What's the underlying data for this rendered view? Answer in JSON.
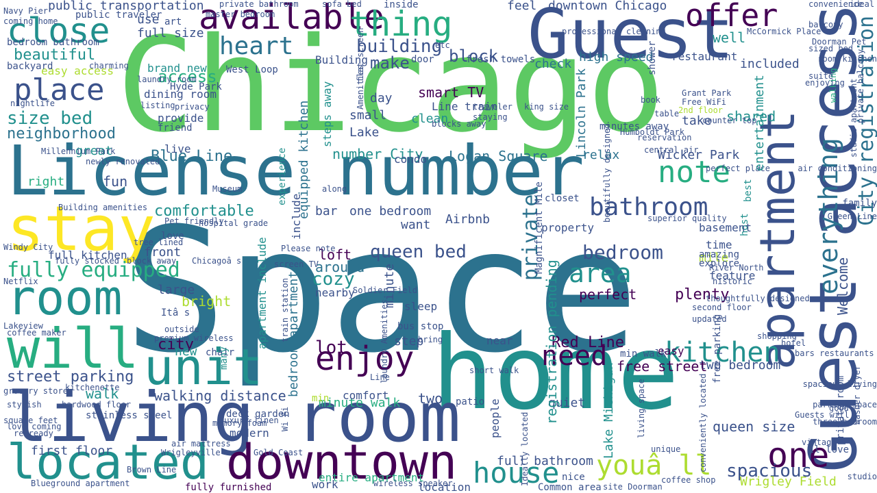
{
  "palette": {
    "dark_purple": "#440154",
    "indigo": "#3b528b",
    "teal": "#2c728e",
    "sea": "#21908d",
    "green": "#27ad81",
    "lime": "#5dc963",
    "light_lime": "#addc30",
    "yellow": "#fde725"
  },
  "words": [
    {
      "text": "Space"
    },
    {
      "text": "Chicago"
    },
    {
      "text": "home"
    },
    {
      "text": "Guest access"
    },
    {
      "text": "License number"
    },
    {
      "text": "Guest"
    },
    {
      "text": "living room"
    },
    {
      "text": "stay"
    },
    {
      "text": "room"
    },
    {
      "text": "will"
    },
    {
      "text": "unit"
    },
    {
      "text": "located"
    },
    {
      "text": "downtown"
    },
    {
      "text": "apartment"
    },
    {
      "text": "close"
    },
    {
      "text": "available"
    },
    {
      "text": "thing"
    },
    {
      "text": "offer"
    },
    {
      "text": "enjoy"
    },
    {
      "text": "house"
    },
    {
      "text": "youâ ll"
    },
    {
      "text": "one"
    },
    {
      "text": "kitchen"
    },
    {
      "text": "need"
    },
    {
      "text": "area"
    },
    {
      "text": "bathroom"
    },
    {
      "text": "note"
    },
    {
      "text": "place"
    },
    {
      "text": "heart"
    },
    {
      "text": "everything"
    },
    {
      "text": "City registration"
    },
    {
      "text": "fully equipped"
    },
    {
      "text": "queen bed"
    },
    {
      "text": "walking distance"
    },
    {
      "text": "street parking"
    },
    {
      "text": "bedroom"
    },
    {
      "text": "private"
    },
    {
      "text": "spacious"
    },
    {
      "text": "size bed"
    },
    {
      "text": "neighborhood"
    },
    {
      "text": "building"
    },
    {
      "text": "beautiful"
    },
    {
      "text": "block"
    },
    {
      "text": "make"
    },
    {
      "text": "access"
    },
    {
      "text": "Blue Line"
    },
    {
      "text": "Wicker Park"
    },
    {
      "text": "Logan Square"
    },
    {
      "text": "smart TV"
    },
    {
      "text": "comfortable"
    },
    {
      "text": "fully furnished"
    },
    {
      "text": "Wrigley Field"
    },
    {
      "text": "full bathroom"
    },
    {
      "text": "first floor"
    },
    {
      "text": "Red Line"
    },
    {
      "text": "minute walk"
    },
    {
      "text": "entire apartment"
    },
    {
      "text": "two bedroom"
    },
    {
      "text": "free street"
    },
    {
      "text": "perfect"
    },
    {
      "text": "plenty"
    },
    {
      "text": "Welcome"
    },
    {
      "text": "public transportation"
    },
    {
      "text": "Lincoln Park"
    },
    {
      "text": "Lake Michigan"
    },
    {
      "text": "full kitchen"
    },
    {
      "text": "one bedroom"
    },
    {
      "text": "Airbnb"
    },
    {
      "text": "downtown Chicago"
    },
    {
      "text": "brand new"
    },
    {
      "text": "dining room"
    },
    {
      "text": "easy access"
    },
    {
      "text": "high speed"
    },
    {
      "text": "restaurant"
    },
    {
      "text": "check"
    },
    {
      "text": "included"
    },
    {
      "text": "Line train"
    },
    {
      "text": "relax"
    },
    {
      "text": "number City"
    },
    {
      "text": "fun"
    },
    {
      "text": "great"
    },
    {
      "text": "right"
    },
    {
      "text": "provide"
    },
    {
      "text": "loft"
    },
    {
      "text": "around"
    },
    {
      "text": "cozy"
    },
    {
      "text": "nearby"
    },
    {
      "text": "condo"
    },
    {
      "text": "quiet"
    },
    {
      "text": "queen size"
    },
    {
      "text": "modern"
    },
    {
      "text": "lot"
    },
    {
      "text": "step"
    },
    {
      "text": "city"
    },
    {
      "text": "bright"
    },
    {
      "text": "large"
    },
    {
      "text": "front"
    },
    {
      "text": "walk"
    },
    {
      "text": "two"
    },
    {
      "text": "comfort"
    },
    {
      "text": "work"
    },
    {
      "text": "Wrigleyville"
    },
    {
      "text": "Hyde Park"
    },
    {
      "text": "Brown Line"
    },
    {
      "text": "Navy Pier"
    },
    {
      "text": "Millennium Park"
    },
    {
      "text": "Gold Coast"
    },
    {
      "text": "West Loop"
    },
    {
      "text": "Building amenities"
    },
    {
      "text": "minutes away"
    },
    {
      "text": "registration pending"
    },
    {
      "text": "Blueground apartment"
    },
    {
      "text": "hardwood floor"
    },
    {
      "text": "coffee maker"
    },
    {
      "text": "master bedroom"
    },
    {
      "text": "private bathroom"
    },
    {
      "text": "walking"
    },
    {
      "text": "McCormick Place"
    },
    {
      "text": "Grant Park"
    },
    {
      "text": "Free WiFi"
    },
    {
      "text": "2nd floor"
    },
    {
      "text": "take"
    },
    {
      "text": "mile"
    },
    {
      "text": "time"
    },
    {
      "text": "feature"
    },
    {
      "text": "amazing"
    },
    {
      "text": "explore"
    },
    {
      "text": "River North"
    },
    {
      "text": "Soldier Field"
    },
    {
      "text": "premium wireless"
    },
    {
      "text": "stainless steel"
    },
    {
      "text": "luxury linen"
    },
    {
      "text": "deck garden"
    },
    {
      "text": "Line"
    },
    {
      "text": "easy"
    },
    {
      "text": "min walk"
    },
    {
      "text": "coffee shop"
    },
    {
      "text": "spacious living"
    },
    {
      "text": "shopping"
    },
    {
      "text": "Museum"
    },
    {
      "text": "bar"
    },
    {
      "text": "want"
    },
    {
      "text": "minute"
    },
    {
      "text": "day"
    },
    {
      "text": "small"
    },
    {
      "text": "clean"
    },
    {
      "text": "Lake"
    },
    {
      "text": "sleep"
    },
    {
      "text": "bus stop"
    },
    {
      "text": "near"
    },
    {
      "text": "new"
    },
    {
      "text": "chair"
    },
    {
      "text": "love"
    },
    {
      "text": "use"
    },
    {
      "text": "art"
    },
    {
      "text": "full size"
    },
    {
      "text": "live"
    },
    {
      "text": "charming"
    },
    {
      "text": "backyard"
    },
    {
      "text": "bedroom bathroom"
    },
    {
      "text": "coming home"
    },
    {
      "text": "public traveler"
    },
    {
      "text": "sofa bed"
    },
    {
      "text": "feel"
    },
    {
      "text": "inside"
    },
    {
      "text": "door"
    },
    {
      "text": "fresh towels"
    },
    {
      "text": "Building"
    },
    {
      "text": "laundry room"
    },
    {
      "text": "privacy"
    },
    {
      "text": "friend"
    },
    {
      "text": "listing"
    },
    {
      "text": "nightlife"
    },
    {
      "text": "Windy City"
    },
    {
      "text": "Netflix"
    },
    {
      "text": "grocery store"
    },
    {
      "text": "kitchenette"
    },
    {
      "text": "air mattress"
    },
    {
      "text": "memory foam"
    },
    {
      "text": "stylish"
    },
    {
      "text": "square feet"
    },
    {
      "text": "love coming"
    },
    {
      "text": "re ready"
    },
    {
      "text": "block away"
    },
    {
      "text": "tree lined"
    },
    {
      "text": "fully stocked"
    },
    {
      "text": "Chicagoâ s"
    },
    {
      "text": "Please note"
    },
    {
      "text": "screen TV"
    },
    {
      "text": "shower"
    },
    {
      "text": "central air"
    },
    {
      "text": "perfect place"
    },
    {
      "text": "family"
    },
    {
      "text": "Green Line"
    },
    {
      "text": "shared"
    },
    {
      "text": "well"
    },
    {
      "text": "entertainment"
    },
    {
      "text": "best"
    },
    {
      "text": "closet"
    },
    {
      "text": "host"
    },
    {
      "text": "basement"
    },
    {
      "text": "superior quality"
    },
    {
      "text": "property"
    },
    {
      "text": "Magnificent Mile"
    },
    {
      "text": "experience"
    },
    {
      "text": "include"
    },
    {
      "text": "apartment include"
    },
    {
      "text": "bedroom apartment"
    },
    {
      "text": "equipped kitchen"
    },
    {
      "text": "steps away"
    },
    {
      "text": "many"
    },
    {
      "text": "outside"
    },
    {
      "text": "Itâ s"
    },
    {
      "text": "min"
    },
    {
      "text": "bring"
    },
    {
      "text": "short walk"
    },
    {
      "text": "patio"
    },
    {
      "text": "people"
    },
    {
      "text": "nice"
    },
    {
      "text": "location"
    },
    {
      "text": "Common area"
    },
    {
      "text": "site Doorman"
    },
    {
      "text": "ll love"
    },
    {
      "text": "studio"
    },
    {
      "text": "vintage"
    },
    {
      "text": "washer dryer"
    },
    {
      "text": "Ideally located"
    },
    {
      "text": "living space"
    },
    {
      "text": "conveniently located"
    },
    {
      "text": "unique"
    },
    {
      "text": "updated"
    },
    {
      "text": "second floor"
    },
    {
      "text": "historic"
    },
    {
      "text": "thoughtfully designed"
    },
    {
      "text": "Lakeview"
    },
    {
      "text": "flat screen"
    },
    {
      "text": "wireless speaker"
    },
    {
      "text": "Wi Fi"
    },
    {
      "text": "train station"
    },
    {
      "text": "newly renovated"
    },
    {
      "text": "hotel"
    },
    {
      "text": "ideal"
    },
    {
      "text": "convenience"
    },
    {
      "text": "etc"
    },
    {
      "text": "professional cleaning"
    },
    {
      "text": "balcony"
    },
    {
      "text": "Doorman Pet"
    },
    {
      "text": "sized bed"
    },
    {
      "text": "room kitchen"
    },
    {
      "text": "suite"
    },
    {
      "text": "enjoying"
    },
    {
      "text": "book"
    },
    {
      "text": "table"
    },
    {
      "text": "reservation"
    },
    {
      "text": "Humboldt Park"
    },
    {
      "text": "counter top"
    },
    {
      "text": "king size"
    },
    {
      "text": "staying"
    },
    {
      "text": "blocks away"
    },
    {
      "text": "traveler"
    },
    {
      "text": "along"
    },
    {
      "text": "beautifully designed"
    },
    {
      "text": "laundry Amenities"
    },
    {
      "text": "private room"
    },
    {
      "text": "free parking"
    },
    {
      "text": "Amenities"
    },
    {
      "text": "hospital grade"
    },
    {
      "text": "Pet friendly"
    },
    {
      "text": "three bedroom"
    },
    {
      "text": "parking space"
    },
    {
      "text": "Guests will"
    },
    {
      "text": "good"
    },
    {
      "text": "bars restaurants"
    },
    {
      "text": "air conditioning"
    },
    {
      "text": "studio apartment"
    },
    {
      "text": "private balcony"
    }
  ]
}
